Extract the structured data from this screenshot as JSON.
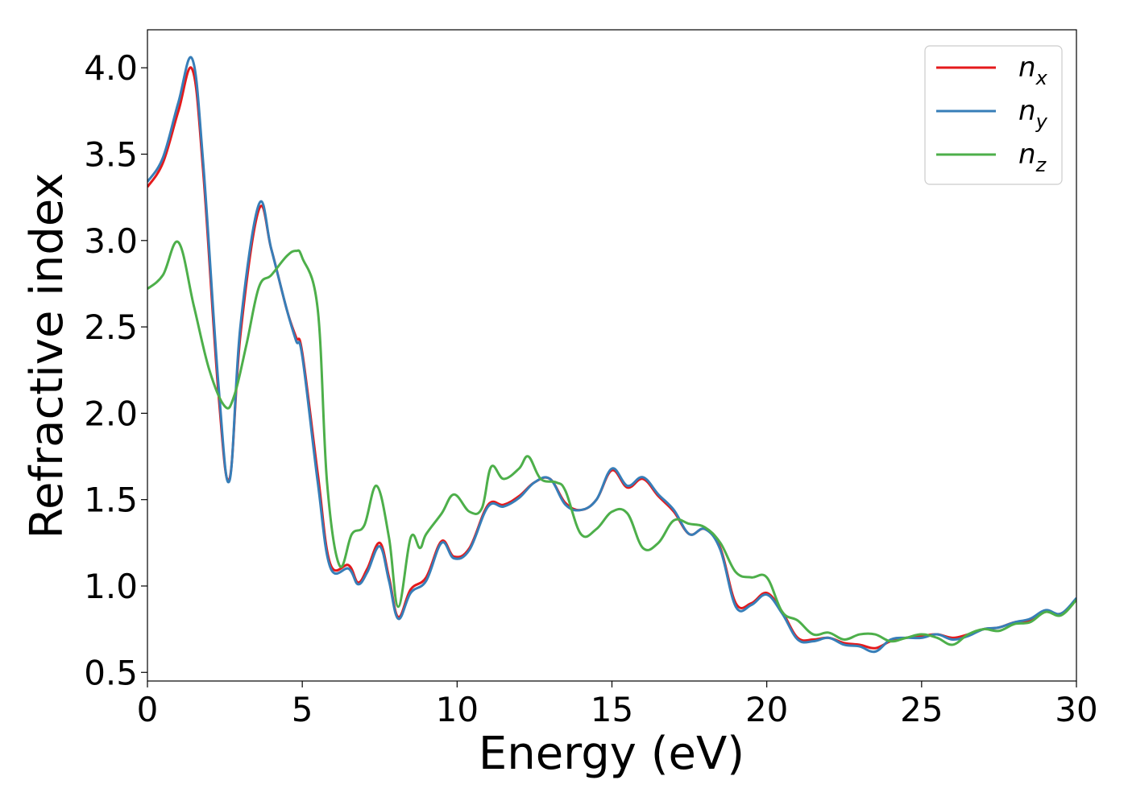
{
  "chart_data": {
    "type": "line",
    "title": "",
    "xlabel": "Energy (eV)",
    "ylabel": "Refractive index",
    "xlim": [
      0,
      30
    ],
    "ylim": [
      0.45,
      4.22
    ],
    "xticks": [
      0,
      5,
      10,
      15,
      20,
      25,
      30
    ],
    "xtick_labels": [
      "0",
      "5",
      "10",
      "15",
      "20",
      "25",
      "30"
    ],
    "yticks": [
      0.5,
      1.0,
      1.5,
      2.0,
      2.5,
      3.0,
      3.5,
      4.0
    ],
    "ytick_labels": [
      "0.5",
      "1.0",
      "1.5",
      "2.0",
      "2.5",
      "3.0",
      "3.5",
      "4.0"
    ],
    "grid": false,
    "legend_position": "top-right",
    "series": [
      {
        "name": "n_x",
        "label_main": "n",
        "label_sub": "x",
        "color": "#e41a1c",
        "x": [
          0,
          0.5,
          1.0,
          1.45,
          1.8,
          2.3,
          2.65,
          3.0,
          3.6,
          4.0,
          4.5,
          4.8,
          5.0,
          5.5,
          5.9,
          6.5,
          6.8,
          7.1,
          7.5,
          7.8,
          8.1,
          8.5,
          9.0,
          9.5,
          9.9,
          10.4,
          11.0,
          11.5,
          12.0,
          12.5,
          13.0,
          13.5,
          14.0,
          14.5,
          15.0,
          15.5,
          16.0,
          16.5,
          17.0,
          17.5,
          18.0,
          18.5,
          19.0,
          19.5,
          20.0,
          20.5,
          21.0,
          21.5,
          22.0,
          22.5,
          23.0,
          23.5,
          24.0,
          24.5,
          25.0,
          25.5,
          26.0,
          26.5,
          27.0,
          27.5,
          28.0,
          28.5,
          29.0,
          29.5,
          30.0
        ],
        "y": [
          3.31,
          3.45,
          3.75,
          3.99,
          3.4,
          2.1,
          1.62,
          2.45,
          3.18,
          2.95,
          2.6,
          2.44,
          2.35,
          1.65,
          1.13,
          1.12,
          1.02,
          1.1,
          1.25,
          1.05,
          0.82,
          0.98,
          1.05,
          1.26,
          1.17,
          1.22,
          1.47,
          1.47,
          1.52,
          1.6,
          1.62,
          1.48,
          1.44,
          1.5,
          1.67,
          1.57,
          1.62,
          1.52,
          1.43,
          1.3,
          1.33,
          1.22,
          0.9,
          0.9,
          0.96,
          0.85,
          0.7,
          0.69,
          0.7,
          0.67,
          0.66,
          0.64,
          0.68,
          0.7,
          0.71,
          0.72,
          0.7,
          0.72,
          0.75,
          0.76,
          0.79,
          0.8,
          0.85,
          0.84,
          0.92
        ]
      },
      {
        "name": "n_y",
        "label_main": "n",
        "label_sub": "y",
        "color": "#377eb8",
        "x": [
          0,
          0.5,
          1.0,
          1.45,
          1.8,
          2.3,
          2.65,
          3.0,
          3.6,
          4.0,
          4.5,
          4.8,
          5.0,
          5.5,
          5.9,
          6.5,
          6.8,
          7.1,
          7.5,
          7.8,
          8.1,
          8.5,
          9.0,
          9.5,
          9.9,
          10.4,
          11.0,
          11.5,
          12.0,
          12.5,
          13.0,
          13.5,
          14.0,
          14.5,
          15.0,
          15.5,
          16.0,
          16.5,
          17.0,
          17.5,
          18.0,
          18.5,
          19.0,
          19.5,
          20.0,
          20.5,
          21.0,
          21.5,
          22.0,
          22.5,
          23.0,
          23.5,
          24.0,
          24.5,
          25.0,
          25.5,
          26.0,
          26.5,
          27.0,
          27.5,
          28.0,
          28.5,
          29.0,
          29.5,
          30.0
        ],
        "y": [
          3.34,
          3.48,
          3.8,
          4.05,
          3.45,
          2.15,
          1.61,
          2.5,
          3.21,
          2.95,
          2.6,
          2.42,
          2.33,
          1.6,
          1.11,
          1.1,
          1.01,
          1.08,
          1.23,
          1.03,
          0.81,
          0.96,
          1.03,
          1.25,
          1.16,
          1.21,
          1.46,
          1.46,
          1.51,
          1.6,
          1.62,
          1.47,
          1.44,
          1.5,
          1.68,
          1.58,
          1.63,
          1.53,
          1.44,
          1.3,
          1.33,
          1.21,
          0.88,
          0.89,
          0.95,
          0.84,
          0.69,
          0.68,
          0.7,
          0.66,
          0.65,
          0.62,
          0.69,
          0.7,
          0.7,
          0.72,
          0.69,
          0.71,
          0.75,
          0.76,
          0.79,
          0.81,
          0.86,
          0.84,
          0.93
        ]
      },
      {
        "name": "n_z",
        "label_main": "n",
        "label_sub": "z",
        "color": "#4daf4a",
        "x": [
          0,
          0.5,
          1.0,
          1.5,
          2.0,
          2.5,
          2.8,
          3.2,
          3.6,
          4.0,
          4.5,
          4.8,
          5.0,
          5.5,
          5.8,
          6.2,
          6.6,
          7.0,
          7.4,
          7.8,
          8.1,
          8.5,
          8.8,
          9.0,
          9.5,
          9.9,
          10.4,
          10.8,
          11.1,
          11.5,
          12.0,
          12.3,
          12.7,
          13.2,
          13.5,
          14.0,
          14.5,
          15.0,
          15.5,
          16.0,
          16.5,
          17.0,
          17.5,
          18.0,
          18.5,
          19.0,
          19.5,
          20.0,
          20.5,
          21.0,
          21.5,
          22.0,
          22.5,
          23.0,
          23.5,
          24.0,
          24.5,
          25.0,
          25.5,
          26.0,
          26.5,
          27.0,
          27.5,
          28.0,
          28.5,
          29.0,
          29.5,
          30.0
        ],
        "y": [
          2.72,
          2.8,
          2.99,
          2.62,
          2.25,
          2.04,
          2.1,
          2.4,
          2.73,
          2.8,
          2.91,
          2.94,
          2.9,
          2.6,
          1.6,
          1.12,
          1.3,
          1.35,
          1.58,
          1.28,
          0.88,
          1.28,
          1.22,
          1.3,
          1.42,
          1.53,
          1.43,
          1.45,
          1.69,
          1.62,
          1.68,
          1.75,
          1.62,
          1.6,
          1.55,
          1.3,
          1.33,
          1.43,
          1.42,
          1.22,
          1.25,
          1.38,
          1.36,
          1.34,
          1.25,
          1.08,
          1.05,
          1.05,
          0.85,
          0.8,
          0.72,
          0.73,
          0.69,
          0.72,
          0.72,
          0.68,
          0.7,
          0.72,
          0.7,
          0.66,
          0.72,
          0.75,
          0.74,
          0.78,
          0.79,
          0.85,
          0.83,
          0.92
        ]
      }
    ]
  }
}
